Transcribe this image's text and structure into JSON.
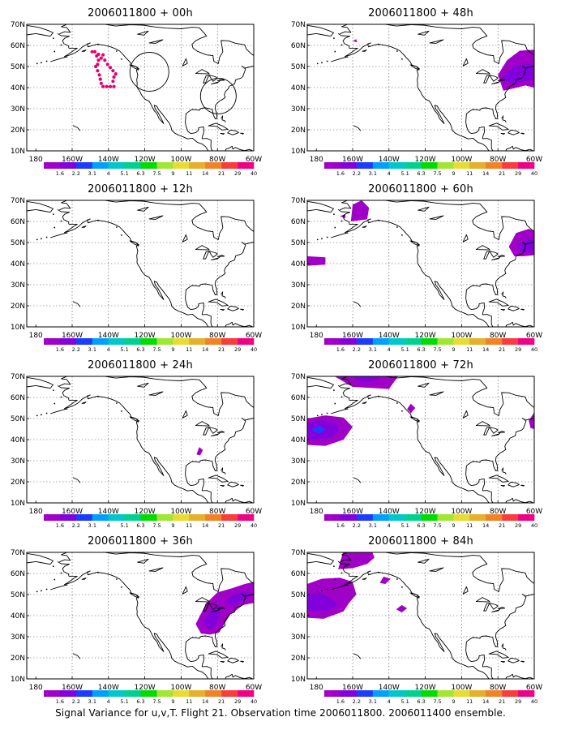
{
  "panels": [
    {
      "title": "2006011800 + 00h",
      "forecast_hour": 0
    },
    {
      "title": "2006011800 + 48h",
      "forecast_hour": 48
    },
    {
      "title": "2006011800 + 12h",
      "forecast_hour": 12
    },
    {
      "title": "2006011800 + 60h",
      "forecast_hour": 60
    },
    {
      "title": "2006011800 + 24h",
      "forecast_hour": 24
    },
    {
      "title": "2006011800 + 72h",
      "forecast_hour": 72
    },
    {
      "title": "2006011800 + 36h",
      "forecast_hour": 36
    },
    {
      "title": "2006011800 + 84h",
      "forecast_hour": 84
    }
  ],
  "axes": {
    "lat_labels": [
      "70N",
      "60N",
      "50N",
      "40N",
      "30N",
      "20N",
      "10N"
    ],
    "lon_labels": [
      "180",
      "160W",
      "140W",
      "120W",
      "100W",
      "80W",
      "60W"
    ],
    "lat_range": [
      10,
      70
    ],
    "lon_range": [
      -185,
      -60
    ],
    "grid": "dotted"
  },
  "colorbar": {
    "labels": [
      "1.6",
      "2.2",
      "3.1",
      "4",
      "5.1",
      "6.3",
      "7.5",
      "9",
      "11",
      "14",
      "21",
      "29",
      "40"
    ],
    "colors": [
      "#a000c8",
      "#8200dc",
      "#1e3cff",
      "#00a0ff",
      "#00c8c8",
      "#00d28c",
      "#00dc00",
      "#a0e632",
      "#e6dc32",
      "#e6af2d",
      "#f08228",
      "#fa3c3c",
      "#f00082"
    ]
  },
  "footer": "Signal Variance for u,v,T. Flight 21. Observation time 2006011800. 2006011400 ensemble."
}
